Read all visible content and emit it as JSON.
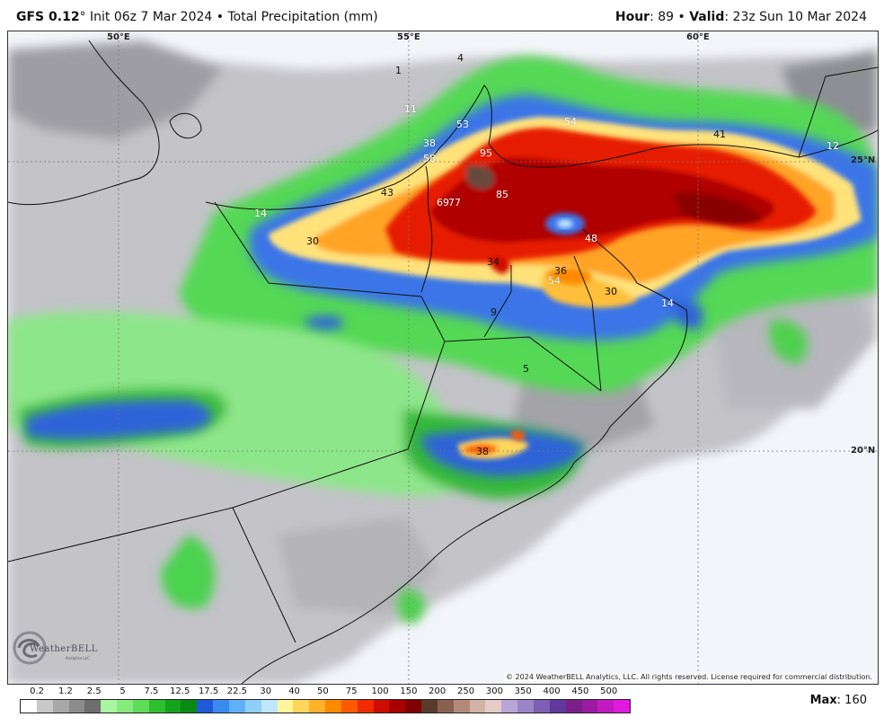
{
  "header": {
    "model": "GFS 0.12",
    "degree": "°",
    "init": " Init 06z 7 Mar 2024 • Total Precipitation (mm)",
    "hour_label": "Hour",
    "hour_value": ": 89 • ",
    "valid_label": "Valid",
    "valid_value": ": 23z Sun 10 Mar 2024"
  },
  "map": {
    "axis_labels": {
      "lon_50": "50°E",
      "lon_55": "55°E",
      "lon_60": "60°E",
      "lat_25": "25°N",
      "lat_20": "20°N"
    },
    "value_labels": [
      {
        "text": "1",
        "dark": true
      },
      {
        "text": "4",
        "dark": true
      },
      {
        "text": "11",
        "dark": false
      },
      {
        "text": "53",
        "dark": false
      },
      {
        "text": "54",
        "dark": false
      },
      {
        "text": "41",
        "dark": true
      },
      {
        "text": "12",
        "dark": false
      },
      {
        "text": "38",
        "dark": false
      },
      {
        "text": "58",
        "dark": false
      },
      {
        "text": "95",
        "dark": false
      },
      {
        "text": "43",
        "dark": true
      },
      {
        "text": "85",
        "dark": false
      },
      {
        "text": "69",
        "dark": false
      },
      {
        "text": "77",
        "dark": false
      },
      {
        "text": "14",
        "dark": false
      },
      {
        "text": "30",
        "dark": true
      },
      {
        "text": "48",
        "dark": false
      },
      {
        "text": "34",
        "dark": true
      },
      {
        "text": "36",
        "dark": true
      },
      {
        "text": "54",
        "dark": false
      },
      {
        "text": "30",
        "dark": true
      },
      {
        "text": "14",
        "dark": false
      },
      {
        "text": "9",
        "dark": true
      },
      {
        "text": "5",
        "dark": true
      },
      {
        "text": "38",
        "dark": true
      }
    ],
    "copyright": "© 2024 WeatherBELL Analytics, LLC. All rights reserved. License required for commercial distribution.",
    "logo_text": "WeatherBELL",
    "logo_sub": "Analytics LLC"
  },
  "legend": {
    "ticks": [
      "0.2",
      "1.2",
      "2.5",
      "5",
      "7.5",
      "12.5",
      "17.5",
      "22.5",
      "30",
      "40",
      "50",
      "75",
      "100",
      "150",
      "200",
      "250",
      "300",
      "350",
      "400",
      "450",
      "500"
    ],
    "colors": [
      "#ffffff",
      "#c8c8c8",
      "#a8a8a8",
      "#8c8c8c",
      "#6e6e6e",
      "#a9f5a0",
      "#86ec7d",
      "#5ddd58",
      "#2fc032",
      "#14a31a",
      "#0a8a13",
      "#1f5ad8",
      "#3a8bf0",
      "#5fb0f6",
      "#8ecff8",
      "#bfe6fb",
      "#fff59a",
      "#ffd65a",
      "#ffb12a",
      "#ff8a00",
      "#ff5a00",
      "#f22a00",
      "#cf0c00",
      "#a80000",
      "#800000",
      "#5b3a2c",
      "#8a6050",
      "#b28a7a",
      "#d3b3a8",
      "#e6cbc6",
      "#b9a6d6",
      "#9c84c8",
      "#7d60b6",
      "#5f3a9a",
      "#7b1f8a",
      "#9c1aa0",
      "#c21ac0",
      "#e21ae0"
    ],
    "max_label": "Max",
    "max_value": ": 160"
  }
}
